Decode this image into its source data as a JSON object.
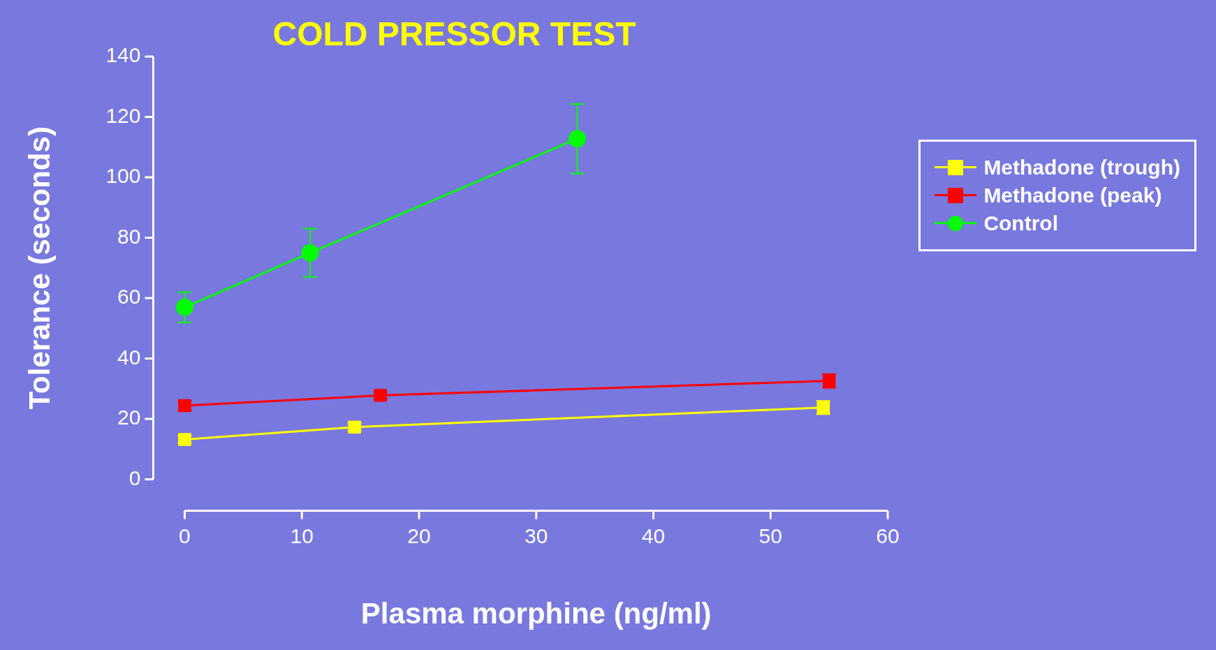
{
  "chart_data": {
    "type": "line",
    "title": "COLD PRESSOR TEST",
    "xlabel": "Plasma morphine (ng/ml)",
    "ylabel": "Tolerance (seconds)",
    "xlim": [
      0,
      60
    ],
    "ylim": [
      0,
      140
    ],
    "xticks": [
      0,
      10,
      20,
      30,
      40,
      50,
      60
    ],
    "yticks": [
      0,
      20,
      40,
      60,
      80,
      100,
      120,
      140
    ],
    "grid": false,
    "legend": "right",
    "line_style": "solid",
    "series": [
      {
        "name": "Methadone (trough)",
        "color": "#ffff00",
        "marker": "square",
        "x": [
          0,
          14.5,
          54.5
        ],
        "values": [
          13.2,
          17.3,
          23.8
        ],
        "errors": [
          1.2,
          1.2,
          2.2
        ]
      },
      {
        "name": "Methadone (peak)",
        "color": "#ff0000",
        "marker": "square",
        "x": [
          0,
          16.7,
          55
        ],
        "values": [
          24.4,
          27.8,
          32.6
        ],
        "errors": [
          1.5,
          1.2,
          2.3
        ]
      },
      {
        "name": "Control",
        "color": "#00ff00",
        "marker": "circle",
        "x": [
          0,
          10.7,
          33.5
        ],
        "values": [
          57,
          75,
          112.8
        ],
        "errors": [
          5,
          8,
          11.5
        ]
      }
    ]
  }
}
